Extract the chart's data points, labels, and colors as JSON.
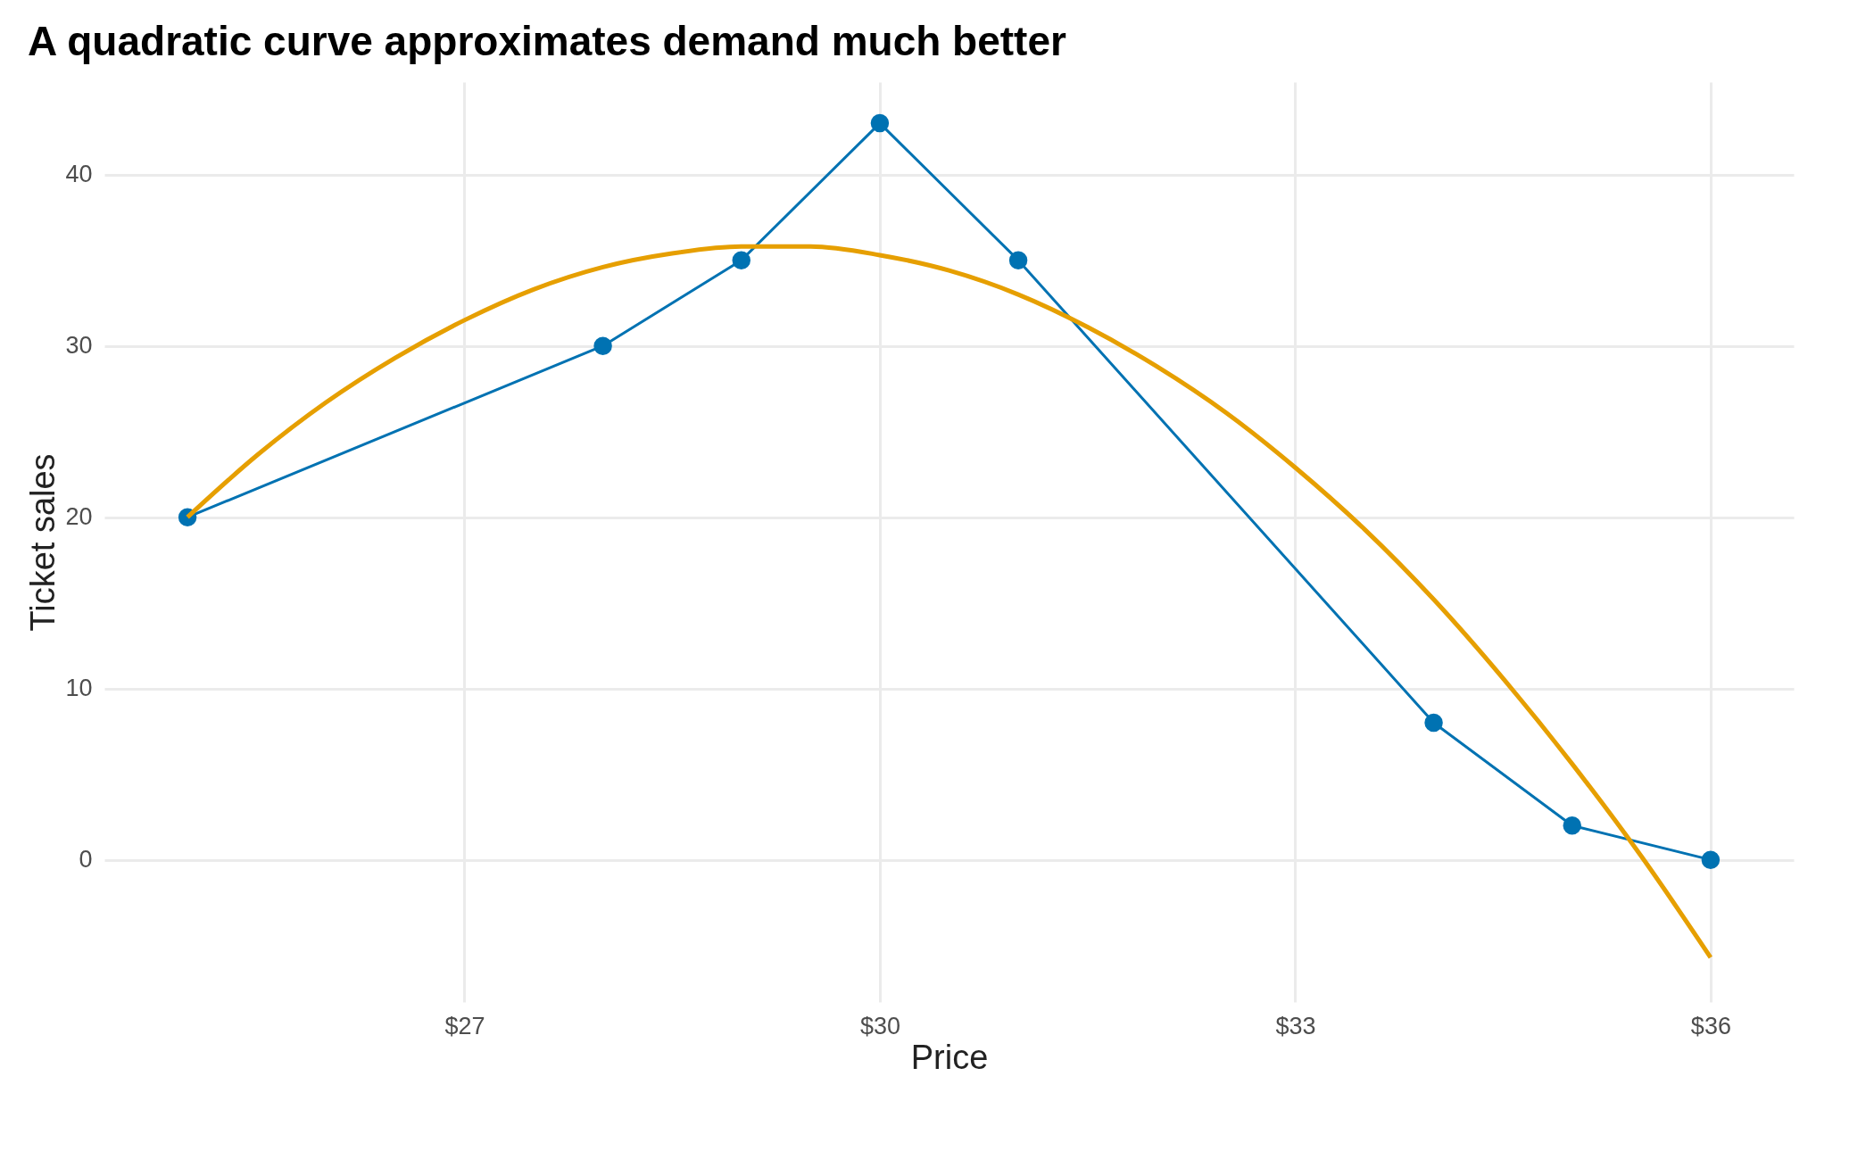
{
  "chart_data": {
    "type": "line",
    "title": "A quadratic curve approximates demand much better",
    "xlabel": "Price",
    "ylabel": "Ticket sales",
    "xlim": [
      24.4,
      36.6
    ],
    "xticks": [
      {
        "value": 27,
        "label": "$27"
      },
      {
        "value": 30,
        "label": "$30"
      },
      {
        "value": 33,
        "label": "$33"
      },
      {
        "value": 36,
        "label": "$36"
      }
    ],
    "ylim": [
      -8.3,
      45.4
    ],
    "yticks": [
      0,
      10,
      20,
      30,
      40
    ],
    "grid": true,
    "line_style": "solid",
    "series": [
      {
        "color": "#0072b2",
        "marker": "circle",
        "x": [
          25,
          28,
          29,
          30,
          31,
          34,
          35,
          36
        ],
        "values": [
          20,
          30,
          35,
          43,
          35,
          8,
          2,
          0
        ]
      },
      {
        "color": "#e69f00",
        "marker": "none",
        "x": [
          25,
          25.5,
          26,
          26.5,
          27,
          27.5,
          28,
          28.5,
          29,
          29.5,
          30,
          30.5,
          31,
          31.5,
          32,
          32.5,
          33,
          33.5,
          34,
          34.5,
          35,
          35.5,
          36
        ],
        "values": [
          20.0,
          23.6,
          26.7,
          29.3,
          31.5,
          33.3,
          34.6,
          35.4,
          35.8,
          35.8,
          35.3,
          34.4,
          33.0,
          31.1,
          28.8,
          26.1,
          22.9,
          19.3,
          15.2,
          10.6,
          5.6,
          0.2,
          -5.7
        ]
      }
    ]
  }
}
